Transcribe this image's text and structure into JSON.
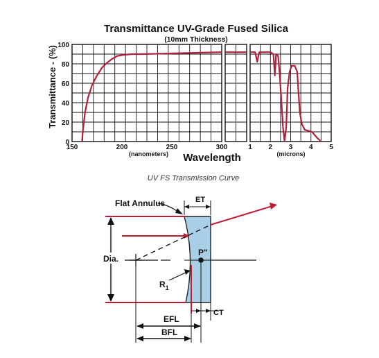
{
  "chart_data": {
    "type": "line",
    "title": "Transmittance UV-Grade Fused Silica",
    "subtitle": "(10mm Thickness)",
    "ylabel": "Transmittance - (%)",
    "xlabel": "Wavelength",
    "ylim": [
      0,
      100
    ],
    "yticks": [
      "0",
      "20",
      "40",
      "60",
      "80",
      "100"
    ],
    "grid": true,
    "panels": [
      {
        "id": "uv",
        "xlim": [
          150,
          300
        ],
        "xticks": [
          "150",
          "200",
          "250",
          "300"
        ],
        "unit_label": "(nanometers)",
        "points": [
          [
            160,
            0
          ],
          [
            161,
            12
          ],
          [
            163,
            30
          ],
          [
            166,
            45
          ],
          [
            170,
            58
          ],
          [
            175,
            68
          ],
          [
            180,
            76
          ],
          [
            185,
            81
          ],
          [
            190,
            85
          ],
          [
            195,
            88
          ],
          [
            200,
            89
          ],
          [
            210,
            90
          ],
          [
            220,
            90
          ],
          [
            240,
            90.5
          ],
          [
            260,
            91
          ],
          [
            280,
            91.5
          ],
          [
            300,
            92
          ]
        ]
      },
      {
        "id": "vis",
        "xlim": [
          300,
          1000
        ],
        "xticks": [],
        "unit_label": "",
        "points": [
          [
            300,
            92
          ],
          [
            1000,
            92
          ]
        ]
      },
      {
        "id": "ir",
        "xlim": [
          1,
          5
        ],
        "xticks": [
          "1",
          "2",
          "3",
          "4",
          "5"
        ],
        "unit_label": "(microns)",
        "points": [
          [
            1,
            92
          ],
          [
            1.25,
            92
          ],
          [
            1.35,
            82
          ],
          [
            1.45,
            92
          ],
          [
            2,
            92
          ],
          [
            2.15,
            90
          ],
          [
            2.22,
            68
          ],
          [
            2.28,
            90
          ],
          [
            2.38,
            88
          ],
          [
            2.45,
            72
          ],
          [
            2.55,
            40
          ],
          [
            2.62,
            15
          ],
          [
            2.7,
            0
          ],
          [
            2.78,
            15
          ],
          [
            2.85,
            55
          ],
          [
            2.95,
            72
          ],
          [
            3.05,
            78
          ],
          [
            3.2,
            78
          ],
          [
            3.32,
            72
          ],
          [
            3.45,
            30
          ],
          [
            3.55,
            18
          ],
          [
            3.7,
            12
          ],
          [
            4.05,
            10
          ],
          [
            4.3,
            4
          ],
          [
            4.5,
            0
          ]
        ]
      }
    ],
    "caption": "UV FS Transmission Curve"
  },
  "diagram": {
    "labels": {
      "flat_annulus": "Flat Annulus",
      "et": "ET",
      "dia": "Dia.",
      "p2": "P\"",
      "r1_main": "R",
      "r1_sub": "1",
      "ct": "CT",
      "efl": "EFL",
      "bfl": "BFL"
    }
  },
  "colors": {
    "curve": "#b0203a",
    "grid": "#111111",
    "ray": "#c01c34",
    "lens_fill": "#a8cfe6",
    "lens_stroke": "#222222"
  }
}
